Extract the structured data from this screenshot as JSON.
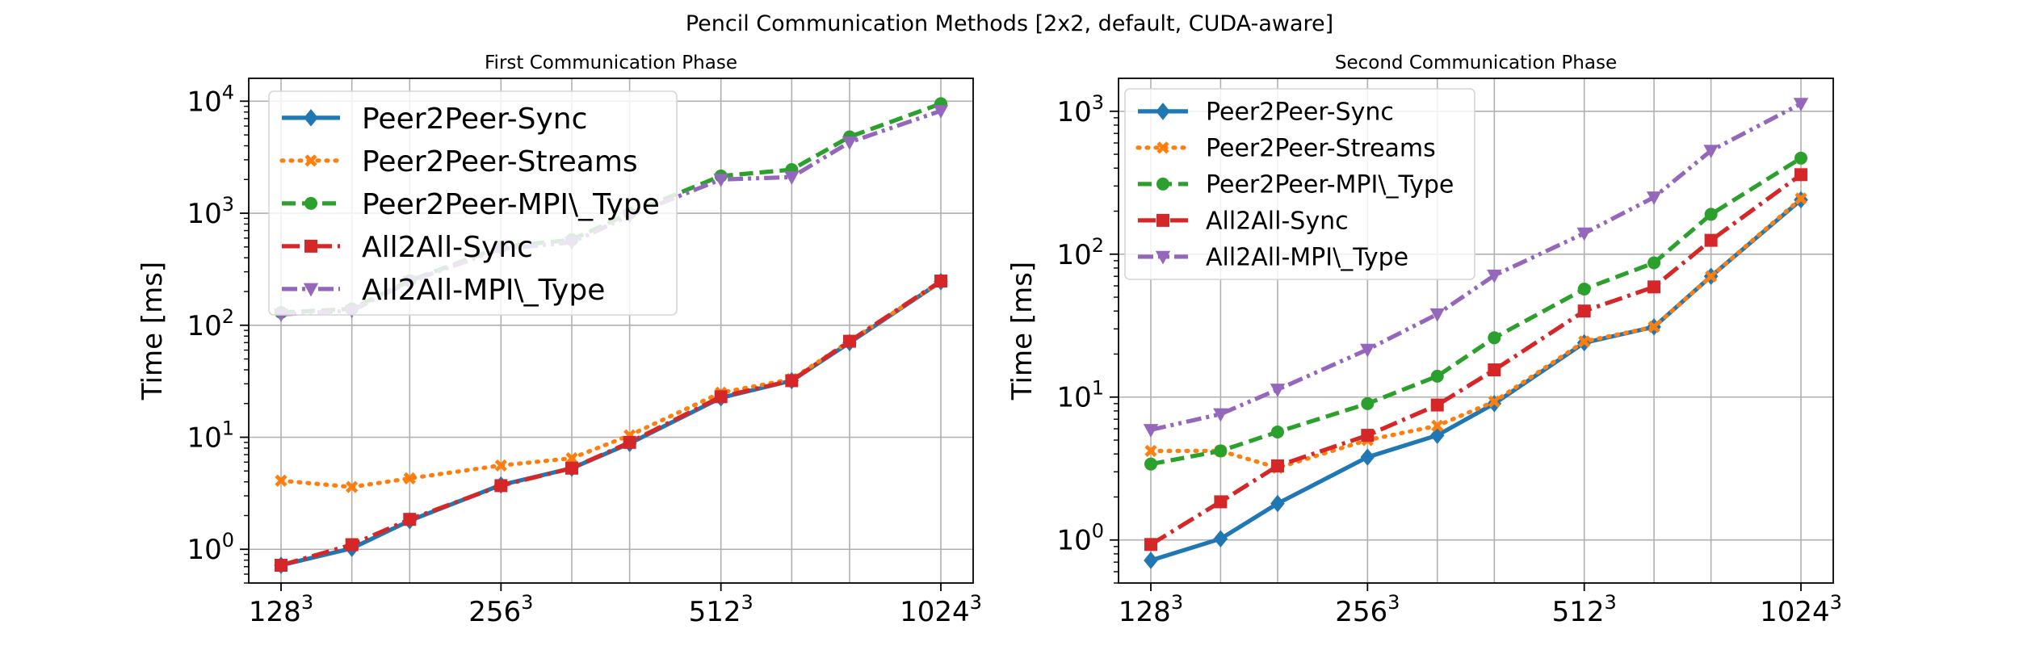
{
  "figure_title": "Pencil Communication Methods [2x2, default, CUDA-aware]",
  "chart_data": [
    {
      "type": "line",
      "title": "First Communication Phase",
      "xlabel": "",
      "ylabel": "Time [ms]",
      "yscale": "log",
      "ylim": [
        0.5,
        16000
      ],
      "x": [
        128,
        160,
        192,
        256,
        320,
        384,
        512,
        640,
        768,
        1024
      ],
      "xticks": [
        {
          "value": 128,
          "base": "128",
          "exp": "3"
        },
        {
          "value": 256,
          "base": "256",
          "exp": "3"
        },
        {
          "value": 512,
          "base": "512",
          "exp": "3"
        },
        {
          "value": 1024,
          "base": "1024",
          "exp": "3"
        }
      ],
      "yticks": [
        {
          "value": 1,
          "base": "10",
          "exp": "0"
        },
        {
          "value": 10,
          "base": "10",
          "exp": "1"
        },
        {
          "value": 100,
          "base": "10",
          "exp": "2"
        },
        {
          "value": 1000,
          "base": "10",
          "exp": "3"
        },
        {
          "value": 10000,
          "base": "10",
          "exp": "4"
        }
      ],
      "grid": true,
      "legend_position": "upper-left",
      "series": [
        {
          "name": "Peer2Peer-Sync",
          "color": "#1f77b4",
          "dash": "solid",
          "marker": "diamond",
          "values": [
            0.72,
            1.02,
            1.8,
            3.75,
            5.3,
            8.8,
            22.5,
            32,
            70,
            245
          ]
        },
        {
          "name": "Peer2Peer-Streams",
          "color": "#ff7f0e",
          "dash": "dotted",
          "marker": "x",
          "values": [
            4.1,
            3.6,
            4.3,
            5.6,
            6.5,
            10.4,
            25,
            33,
            72,
            245
          ]
        },
        {
          "name": "Peer2Peer-MPI\\_Type",
          "color": "#2ca02c",
          "dash": "dashed",
          "marker": "circle",
          "values": [
            130,
            140,
            250,
            500,
            580,
            1000,
            2150,
            2450,
            4800,
            9500
          ]
        },
        {
          "name": "All2All-Sync",
          "color": "#d62728",
          "dash": "dashdot",
          "marker": "square",
          "values": [
            0.72,
            1.1,
            1.85,
            3.7,
            5.3,
            9,
            23,
            32,
            72,
            248
          ]
        },
        {
          "name": "All2All-MPI\\_Type",
          "color": "#9467bd",
          "dash": "dashdotdot",
          "marker": "triangle-down",
          "values": [
            125,
            135,
            245,
            480,
            550,
            950,
            2000,
            2100,
            4300,
            8200
          ]
        }
      ]
    },
    {
      "type": "line",
      "title": "Second Communication Phase",
      "xlabel": "",
      "ylabel": "Time [ms]",
      "yscale": "log",
      "ylim": [
        0.5,
        1700
      ],
      "x": [
        128,
        160,
        192,
        256,
        320,
        384,
        512,
        640,
        768,
        1024
      ],
      "xticks": [
        {
          "value": 128,
          "base": "128",
          "exp": "3"
        },
        {
          "value": 256,
          "base": "256",
          "exp": "3"
        },
        {
          "value": 512,
          "base": "512",
          "exp": "3"
        },
        {
          "value": 1024,
          "base": "1024",
          "exp": "3"
        }
      ],
      "yticks": [
        {
          "value": 1,
          "base": "10",
          "exp": "0"
        },
        {
          "value": 10,
          "base": "10",
          "exp": "1"
        },
        {
          "value": 100,
          "base": "10",
          "exp": "2"
        },
        {
          "value": 1000,
          "base": "10",
          "exp": "3"
        }
      ],
      "grid": true,
      "legend_position": "upper-left",
      "series": [
        {
          "name": "Peer2Peer-Sync",
          "color": "#1f77b4",
          "dash": "solid",
          "marker": "diamond",
          "values": [
            0.72,
            1.02,
            1.8,
            3.8,
            5.4,
            9,
            24,
            31,
            70,
            240
          ]
        },
        {
          "name": "Peer2Peer-Streams",
          "color": "#ff7f0e",
          "dash": "dotted",
          "marker": "x",
          "values": [
            4.2,
            4.2,
            3.2,
            5,
            6.3,
            9.3,
            24.5,
            31,
            70,
            245
          ]
        },
        {
          "name": "Peer2Peer-MPI\\_Type",
          "color": "#2ca02c",
          "dash": "dashed",
          "marker": "circle",
          "values": [
            3.4,
            4.2,
            5.7,
            9,
            14,
            26,
            57,
            87,
            190,
            470
          ]
        },
        {
          "name": "All2All-Sync",
          "color": "#d62728",
          "dash": "dashdot",
          "marker": "square",
          "values": [
            0.93,
            1.85,
            3.3,
            5.4,
            8.8,
            15.5,
            40,
            59,
            125,
            360
          ]
        },
        {
          "name": "All2All-MPI\\_Type",
          "color": "#9467bd",
          "dash": "dashdotdot",
          "marker": "triangle-down",
          "values": [
            5.9,
            7.6,
            11.3,
            21.5,
            38,
            71,
            140,
            250,
            530,
            1130
          ]
        }
      ]
    }
  ]
}
